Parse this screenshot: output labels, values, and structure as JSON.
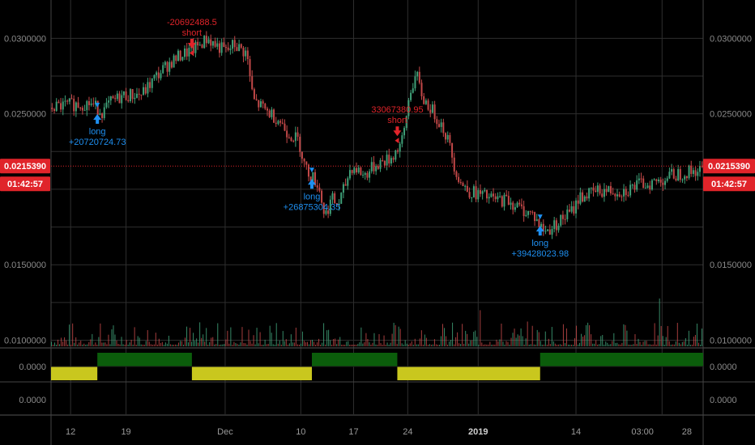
{
  "chart_data": {
    "type": "candlestick",
    "y_axis": {
      "ticks": [
        "0.0300000",
        "0.0250000",
        "0.0150000",
        "0.0100000"
      ],
      "tick_values": [
        0.03,
        0.025,
        0.015,
        0.01
      ],
      "range": [
        0.0096,
        0.032
      ]
    },
    "oscillator_axis": {
      "ticks": [
        "0.0000",
        "0.0000"
      ],
      "range": [
        -1,
        1
      ]
    },
    "x_axis": {
      "labels": [
        "12",
        "19",
        "Dec",
        "10",
        "17",
        "24",
        "2019",
        "14",
        "03:00",
        "28"
      ],
      "bold": [
        false,
        false,
        false,
        false,
        false,
        false,
        true,
        false,
        false,
        false
      ]
    },
    "price_tag": {
      "value": "0.0215390",
      "price": 0.021539,
      "countdown": "01:42:57"
    },
    "price_path": [
      [
        0,
        0.0254
      ],
      [
        0.03,
        0.0256
      ],
      [
        0.06,
        0.0257
      ],
      [
        0.08,
        0.0251
      ],
      [
        0.09,
        0.0257
      ],
      [
        0.11,
        0.0262
      ],
      [
        0.14,
        0.0263
      ],
      [
        0.16,
        0.0274
      ],
      [
        0.18,
        0.0283
      ],
      [
        0.2,
        0.0289
      ],
      [
        0.22,
        0.0293
      ],
      [
        0.24,
        0.03
      ],
      [
        0.25,
        0.0296
      ],
      [
        0.27,
        0.0291
      ],
      [
        0.28,
        0.0296
      ],
      [
        0.3,
        0.029
      ],
      [
        0.31,
        0.0259
      ],
      [
        0.33,
        0.0252
      ],
      [
        0.35,
        0.0246
      ],
      [
        0.36,
        0.0239
      ],
      [
        0.38,
        0.0232
      ],
      [
        0.39,
        0.0214
      ],
      [
        0.41,
        0.0203
      ],
      [
        0.42,
        0.0182
      ],
      [
        0.43,
        0.0194
      ],
      [
        0.44,
        0.0189
      ],
      [
        0.45,
        0.0201
      ],
      [
        0.46,
        0.0215
      ],
      [
        0.47,
        0.0213
      ],
      [
        0.48,
        0.0209
      ],
      [
        0.5,
        0.0217
      ],
      [
        0.52,
        0.022
      ],
      [
        0.53,
        0.0226
      ],
      [
        0.54,
        0.0233
      ],
      [
        0.55,
        0.0264
      ],
      [
        0.56,
        0.0276
      ],
      [
        0.57,
        0.026
      ],
      [
        0.58,
        0.0255
      ],
      [
        0.6,
        0.0242
      ],
      [
        0.61,
        0.0231
      ],
      [
        0.62,
        0.0213
      ],
      [
        0.63,
        0.0203
      ],
      [
        0.64,
        0.0199
      ],
      [
        0.66,
        0.0196
      ],
      [
        0.68,
        0.0193
      ],
      [
        0.7,
        0.0193
      ],
      [
        0.72,
        0.0187
      ],
      [
        0.74,
        0.0183
      ],
      [
        0.75,
        0.0175
      ],
      [
        0.76,
        0.0172
      ],
      [
        0.78,
        0.0179
      ],
      [
        0.8,
        0.0186
      ],
      [
        0.81,
        0.0195
      ],
      [
        0.82,
        0.0196
      ],
      [
        0.84,
        0.0199
      ],
      [
        0.86,
        0.0199
      ],
      [
        0.88,
        0.0199
      ],
      [
        0.9,
        0.0203
      ],
      [
        0.93,
        0.0205
      ],
      [
        0.95,
        0.0209
      ],
      [
        0.97,
        0.0211
      ],
      [
        1.0,
        0.0213
      ]
    ],
    "signal_zones": [
      {
        "start": 0.0,
        "end": 0.071,
        "state": "short"
      },
      {
        "start": 0.071,
        "end": 0.216,
        "state": "long"
      },
      {
        "start": 0.216,
        "end": 0.4,
        "state": "short"
      },
      {
        "start": 0.4,
        "end": 0.531,
        "state": "long"
      },
      {
        "start": 0.531,
        "end": 0.75,
        "state": "short"
      },
      {
        "start": 0.75,
        "end": 1.0,
        "state": "long"
      }
    ],
    "trades": [
      {
        "label": "long",
        "amount": "+20720724.73",
        "dir": "long",
        "x": 0.071,
        "price": 0.0253
      },
      {
        "label": "short",
        "amount": "-20692488.5",
        "dir": "short",
        "x": 0.216,
        "price": 0.029
      },
      {
        "label": "long",
        "amount": "+26875304.35",
        "dir": "long",
        "x": 0.4,
        "price": 0.021
      },
      {
        "label": "short",
        "amount": "33067380.95",
        "dir": "short",
        "x": 0.531,
        "price": 0.0232
      },
      {
        "label": "long",
        "amount": "+39428023.98",
        "dir": "long",
        "x": 0.75,
        "price": 0.0179
      }
    ],
    "colors": {
      "background": "#000000",
      "grid": "#2e2e2e",
      "up": "#3fa078",
      "down": "#c24848",
      "long_arrow": "#1e8ff0",
      "short_arrow": "#e0242a",
      "long_zone": "#0b5d0b",
      "short_zone": "#c9c71e",
      "price_tag": "#e0242a"
    }
  }
}
